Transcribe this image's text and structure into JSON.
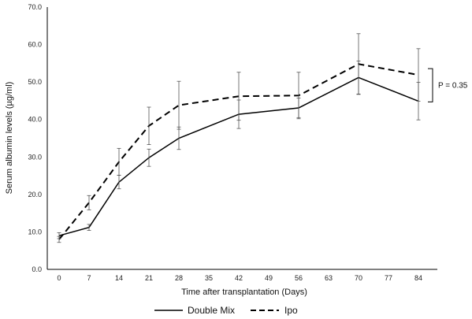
{
  "chart_data": {
    "type": "line",
    "title": "",
    "xlabel": "Time after transplantation (Days)",
    "ylabel": "Serum albumin levels (µg/ml)",
    "ylim": [
      0,
      70
    ],
    "y_ticks": [
      "0.0",
      "10.0",
      "20.0",
      "30.0",
      "40.0",
      "50.0",
      "60.0",
      "70.0"
    ],
    "x_ticks": [
      "0",
      "7",
      "14",
      "21",
      "28",
      "35",
      "42",
      "49",
      "56",
      "63",
      "70",
      "77",
      "84"
    ],
    "grid": false,
    "legend_position": "bottom",
    "series": [
      {
        "name": "Double Mix",
        "style": "solid",
        "color": "#000000",
        "x": [
          0,
          7,
          14,
          21,
          28,
          42,
          56,
          70,
          84
        ],
        "y": [
          9.0,
          11.2,
          23.3,
          29.8,
          35.0,
          41.4,
          43.1,
          51.2,
          44.9
        ],
        "err": [
          0.8,
          0.8,
          1.8,
          2.3,
          3.0,
          3.8,
          2.6,
          4.4,
          5.0
        ]
      },
      {
        "name": "Ipo",
        "style": "dashed",
        "color": "#000000",
        "x": [
          0,
          7,
          14,
          21,
          28,
          42,
          56,
          70,
          84
        ],
        "y": [
          8.0,
          17.8,
          28.7,
          38.3,
          43.8,
          46.2,
          46.4,
          54.8,
          51.9
        ],
        "err": [
          0.8,
          1.9,
          3.6,
          5.0,
          6.4,
          6.4,
          6.2,
          8.1,
          7.0
        ]
      }
    ],
    "annotations": [
      {
        "text": "P = 0.35",
        "between_series_at_x": 84
      }
    ]
  }
}
